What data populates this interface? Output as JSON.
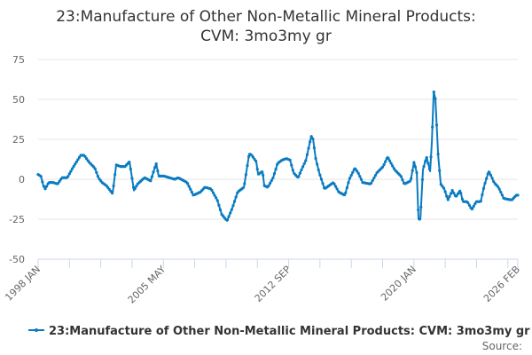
{
  "chart_data": {
    "type": "line",
    "title_lines": [
      "23:Manufacture of Other Non-Metallic Mineral Products:",
      "CVM: 3mo3my gr"
    ],
    "xlabel": "",
    "ylabel": "",
    "ylim": [
      -50,
      75
    ],
    "yticks": [
      75,
      50,
      25,
      0,
      -25,
      -50
    ],
    "xlim": [
      1998.0,
      2026.0833
    ],
    "xtick_labels": [
      {
        "label": "1998 JAN",
        "x": 1998.0
      },
      {
        "label": "2005 MAY",
        "x": 2005.333
      },
      {
        "label": "2012 SEP",
        "x": 2012.667
      },
      {
        "label": "2020 JAN",
        "x": 2020.0
      },
      {
        "label": "2026 FEB",
        "x": 2026.0833
      }
    ],
    "grid": true,
    "legend_position": "bottom",
    "color": "#0a7bc1",
    "series": [
      {
        "name": "23:Manufacture of Other Non-Metallic Mineral Products: CVM: 3mo3my gr",
        "x": [
          1998.0,
          1998.16,
          1998.31,
          1998.42,
          1998.62,
          1998.88,
          1999.14,
          1999.4,
          1999.71,
          2000.02,
          2000.49,
          2000.7,
          2000.96,
          2001.32,
          2001.53,
          2001.74,
          2002.0,
          2002.36,
          2002.57,
          2002.83,
          2003.09,
          2003.35,
          2003.61,
          2003.82,
          2004.23,
          2004.59,
          2004.91,
          2005.06,
          2005.37,
          2006.0,
          2006.2,
          2006.72,
          2007.09,
          2007.5,
          2007.76,
          2008.12,
          2008.49,
          2008.75,
          2009.06,
          2009.37,
          2009.68,
          2010.05,
          2010.36,
          2010.51,
          2010.77,
          2010.88,
          2011.14,
          2011.24,
          2011.45,
          2011.76,
          2012.02,
          2012.28,
          2012.54,
          2012.75,
          2012.96,
          2013.22,
          2013.42,
          2013.68,
          2013.99,
          2014.1,
          2014.25,
          2014.46,
          2014.77,
          2015.29,
          2015.6,
          2015.96,
          2016.22,
          2016.54,
          2016.74,
          2017.0,
          2017.47,
          2017.83,
          2018.2,
          2018.46,
          2018.87,
          2019.24,
          2019.44,
          2019.81,
          2020.01,
          2020.17,
          2020.27,
          2020.38,
          2020.53,
          2020.74,
          2020.95,
          2021.05,
          2021.16,
          2021.26,
          2021.42,
          2021.57,
          2021.78,
          2021.99,
          2022.25,
          2022.46,
          2022.71,
          2022.87,
          2023.13,
          2023.39,
          2023.65,
          2023.91,
          2024.12,
          2024.38,
          2024.53,
          2024.69,
          2024.95,
          2025.26,
          2025.73,
          2025.99,
          2026.0833
        ],
        "values": [
          3,
          2,
          -4,
          -6,
          -2,
          -2,
          -3,
          1,
          1,
          7,
          15,
          15,
          11,
          7,
          1,
          -2,
          -4,
          -9,
          9,
          8,
          8,
          11,
          -7,
          -3,
          1,
          -1,
          10,
          2,
          2,
          0,
          1,
          -2,
          -10,
          -8,
          -5,
          -6,
          -13,
          -22,
          -26,
          -18,
          -8,
          -5,
          16,
          15,
          11,
          3,
          5,
          -4,
          -5,
          1,
          10,
          12,
          13,
          12,
          4,
          1,
          6,
          12,
          27,
          25,
          13,
          4,
          -6,
          -2,
          -8,
          -10,
          0,
          7,
          4,
          -2,
          -3,
          4,
          8,
          14,
          6,
          2,
          -3,
          -1,
          11,
          4,
          -25,
          -25,
          6,
          14,
          5,
          23,
          55,
          50,
          15,
          -3,
          -6,
          -13,
          -7,
          -11,
          -7,
          -14,
          -14,
          -19,
          -14,
          -14,
          -4,
          5,
          2,
          -2,
          -5,
          -12,
          -13,
          -10,
          -10
        ]
      }
    ]
  },
  "source_label": "Source:"
}
